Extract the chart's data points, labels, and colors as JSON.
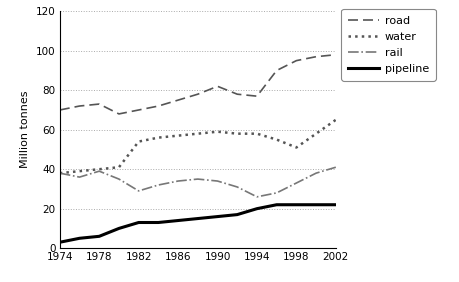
{
  "years": [
    1974,
    1976,
    1978,
    1980,
    1982,
    1984,
    1986,
    1988,
    1990,
    1992,
    1994,
    1996,
    1998,
    2000,
    2002
  ],
  "road": [
    70,
    72,
    73,
    68,
    70,
    72,
    75,
    78,
    82,
    78,
    77,
    90,
    95,
    97,
    98
  ],
  "water": [
    38,
    39,
    40,
    41,
    54,
    56,
    57,
    58,
    59,
    58,
    58,
    55,
    51,
    58,
    65
  ],
  "rail": [
    38,
    36,
    39,
    35,
    29,
    32,
    34,
    35,
    34,
    31,
    26,
    28,
    33,
    38,
    41
  ],
  "pipeline": [
    3,
    5,
    6,
    10,
    13,
    13,
    14,
    15,
    16,
    17,
    20,
    22,
    22,
    22,
    22
  ],
  "road_style": {
    "color": "#555555",
    "linestyle": "--",
    "linewidth": 1.2,
    "dashes": [
      6,
      3
    ]
  },
  "water_style": {
    "color": "#555555",
    "linestyle": ":",
    "linewidth": 1.8
  },
  "rail_style": {
    "color": "#777777",
    "linestyle": "-.",
    "linewidth": 1.2
  },
  "pipeline_style": {
    "color": "#000000",
    "linestyle": "-",
    "linewidth": 2.2
  },
  "ylabel": "Million tonnes",
  "ylim": [
    0,
    120
  ],
  "yticks": [
    0,
    20,
    40,
    60,
    80,
    100,
    120
  ],
  "xticks": [
    1974,
    1978,
    1982,
    1986,
    1990,
    1994,
    1998,
    2002
  ],
  "xlim": [
    1974,
    2002
  ],
  "background_color": "#ffffff",
  "grid_color": "#aaaaaa"
}
